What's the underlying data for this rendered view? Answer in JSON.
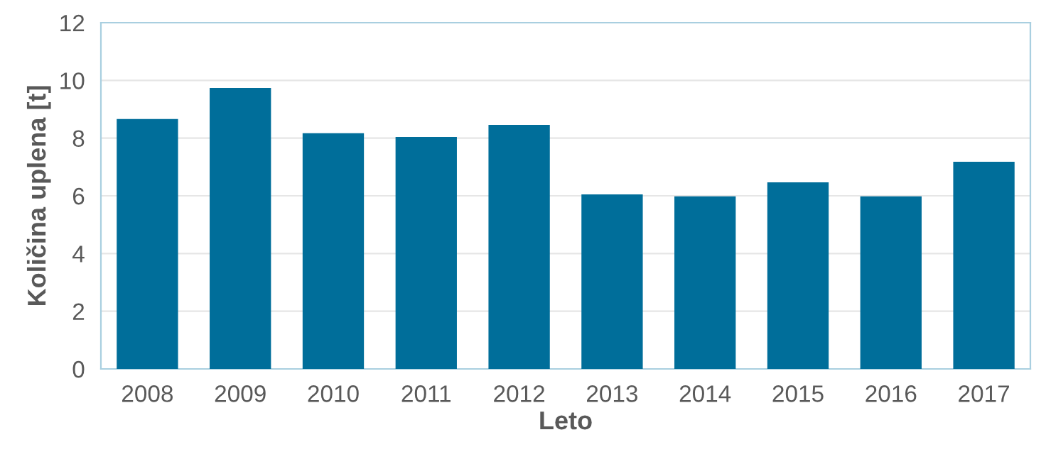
{
  "chart_data": {
    "type": "bar",
    "xlabel": "Leto",
    "ylabel": "Količina uplena [t]",
    "categories": [
      "2008",
      "2009",
      "2010",
      "2011",
      "2012",
      "2013",
      "2014",
      "2015",
      "2016",
      "2017"
    ],
    "values": [
      8.66,
      9.74,
      8.17,
      8.04,
      8.46,
      6.05,
      5.98,
      6.47,
      5.98,
      7.18
    ],
    "color": "#006e9a",
    "ylim": [
      0,
      12
    ],
    "yticks": [
      0,
      2,
      4,
      6,
      8,
      10,
      12
    ],
    "grid": "y"
  }
}
